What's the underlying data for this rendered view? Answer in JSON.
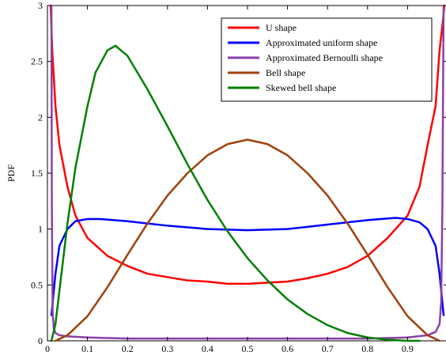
{
  "chart_data": {
    "type": "line",
    "title": "",
    "xlabel": "",
    "ylabel": "PDF",
    "xlim": [
      0,
      1
    ],
    "ylim": [
      0,
      3
    ],
    "xticks": [
      "0",
      "0.1",
      "0.2",
      "0.3",
      "0.4",
      "0.5",
      "0.6",
      "0.7",
      "0.8",
      "0.9",
      "1"
    ],
    "yticks": [
      "0",
      "0.5",
      "1",
      "1.5",
      "2",
      "2.5",
      "3"
    ],
    "grid": false,
    "legend_position": "top-right",
    "series": [
      {
        "name": "U shape",
        "color": "#ff0000",
        "x": [
          0.008,
          0.012,
          0.02,
          0.03,
          0.05,
          0.07,
          0.1,
          0.15,
          0.2,
          0.25,
          0.3,
          0.35,
          0.4,
          0.45,
          0.5,
          0.55,
          0.6,
          0.65,
          0.7,
          0.75,
          0.8,
          0.85,
          0.9,
          0.93,
          0.95,
          0.97,
          0.98,
          0.988,
          0.992
        ],
        "y": [
          3.0,
          2.6,
          2.1,
          1.75,
          1.38,
          1.12,
          0.92,
          0.76,
          0.67,
          0.6,
          0.57,
          0.54,
          0.53,
          0.51,
          0.51,
          0.52,
          0.53,
          0.56,
          0.6,
          0.66,
          0.76,
          0.92,
          1.12,
          1.38,
          1.75,
          2.1,
          2.6,
          2.85,
          3.0
        ]
      },
      {
        "name": "Approximated uniform shape",
        "color": "#0000ff",
        "x": [
          0.01,
          0.02,
          0.03,
          0.05,
          0.07,
          0.1,
          0.13,
          0.2,
          0.3,
          0.4,
          0.5,
          0.6,
          0.7,
          0.8,
          0.87,
          0.9,
          0.93,
          0.95,
          0.97,
          0.98,
          0.99
        ],
        "y": [
          0.23,
          0.6,
          0.85,
          1.0,
          1.07,
          1.09,
          1.09,
          1.07,
          1.03,
          1.0,
          0.99,
          1.0,
          1.04,
          1.08,
          1.1,
          1.09,
          1.06,
          1.0,
          0.85,
          0.6,
          0.23
        ]
      },
      {
        "name": "Approximated Bernoulli shape",
        "color": "#8b3fa8",
        "x": [
          0.01,
          0.011,
          0.013,
          0.016,
          0.02,
          0.03,
          0.05,
          0.1,
          0.2,
          0.3,
          0.5,
          0.7,
          0.8,
          0.9,
          0.95,
          0.97,
          0.98,
          0.984,
          0.987,
          0.989,
          0.99
        ],
        "y": [
          3.0,
          1.2,
          0.25,
          0.11,
          0.07,
          0.05,
          0.04,
          0.03,
          0.02,
          0.02,
          0.02,
          0.02,
          0.02,
          0.03,
          0.05,
          0.08,
          0.15,
          0.35,
          1.2,
          2.4,
          3.0
        ]
      },
      {
        "name": "Bell shape",
        "color": "#a0410d",
        "x": [
          0.02,
          0.05,
          0.1,
          0.15,
          0.2,
          0.25,
          0.3,
          0.35,
          0.4,
          0.45,
          0.5,
          0.55,
          0.6,
          0.65,
          0.7,
          0.75,
          0.8,
          0.85,
          0.9,
          0.95,
          0.98
        ],
        "y": [
          0.0,
          0.05,
          0.22,
          0.48,
          0.77,
          1.05,
          1.3,
          1.5,
          1.66,
          1.76,
          1.8,
          1.76,
          1.66,
          1.5,
          1.3,
          1.05,
          0.77,
          0.48,
          0.22,
          0.05,
          0.0
        ]
      },
      {
        "name": "Skewed bell shape",
        "color": "#008000",
        "x": [
          0.01,
          0.02,
          0.03,
          0.05,
          0.07,
          0.1,
          0.12,
          0.15,
          0.17,
          0.2,
          0.25,
          0.3,
          0.35,
          0.4,
          0.45,
          0.5,
          0.55,
          0.6,
          0.65,
          0.7,
          0.75,
          0.8,
          0.85,
          0.9,
          0.93
        ],
        "y": [
          0.0,
          0.15,
          0.45,
          1.05,
          1.55,
          2.1,
          2.4,
          2.6,
          2.64,
          2.55,
          2.25,
          1.92,
          1.58,
          1.26,
          0.98,
          0.74,
          0.54,
          0.37,
          0.24,
          0.14,
          0.07,
          0.03,
          0.01,
          0.0,
          0.0
        ]
      }
    ]
  }
}
